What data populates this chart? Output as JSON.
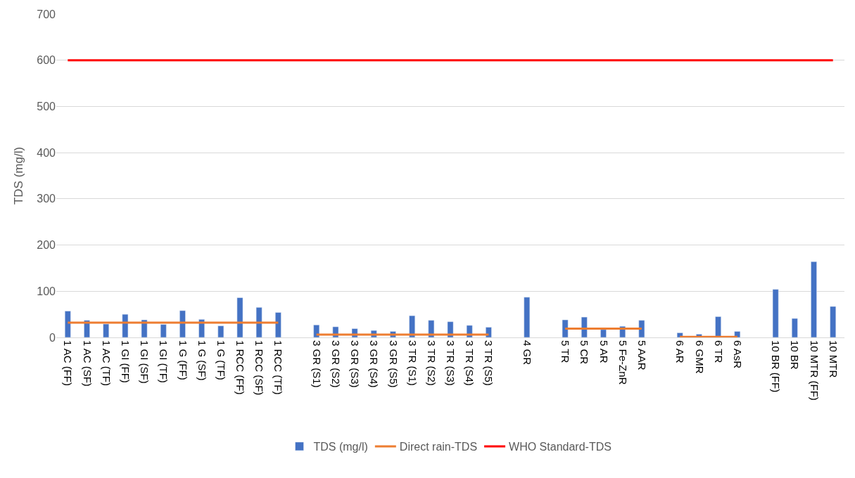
{
  "chart_data": {
    "type": "bar",
    "ylabel": "TDS (mg/l)",
    "categories": [
      "1 AC (FF)",
      "1 AC (SF)",
      "1 AC (TF)",
      "1 GI (FF)",
      "1 GI (SF)",
      "1 GI (TF)",
      "1 G (FF)",
      "1 G (SF)",
      "1 G (TF)",
      "1 RCC (FF)",
      "1 RCC (SF)",
      "1 RCC (TF)",
      null,
      "3 GR (S1)",
      "3 GR (S2)",
      "3 GR (S3)",
      "3 GR (S4)",
      "3 GR (S5)",
      "3 TR (S1)",
      "3 TR (S2)",
      "3 TR (S3)",
      "3 TR (S4)",
      "3 TR (S5)",
      null,
      "4 GR",
      null,
      "5 TR",
      "5 CR",
      "5 AR",
      "5 Fe-ZnR",
      "5 AAR",
      null,
      "6 AR",
      "6 GMR",
      "6 TR",
      "6 AsR",
      null,
      "10 BR (FF)",
      "10 BR",
      "10 MTR (FF)",
      "10 MTR"
    ],
    "series": [
      {
        "name": "TDS (mg/l)",
        "color": "#4472c4",
        "values": [
          57,
          37,
          29,
          50,
          38,
          28,
          58,
          39,
          25,
          86,
          65,
          54,
          null,
          27,
          23,
          19,
          15,
          13,
          47,
          37,
          34,
          26,
          22,
          null,
          87,
          null,
          38,
          44,
          17,
          24,
          37,
          null,
          10,
          7,
          45,
          13,
          null,
          104,
          41,
          164,
          67
        ]
      },
      {
        "name": "Direct rain-TDS",
        "type": "line",
        "color": "#ed7d31",
        "values": [
          32,
          32,
          32,
          32,
          32,
          32,
          32,
          32,
          32,
          32,
          32,
          32,
          null,
          6,
          6,
          6,
          6,
          6,
          6,
          6,
          6,
          6,
          6,
          null,
          null,
          null,
          19,
          19,
          19,
          19,
          19,
          null,
          1,
          1,
          1,
          1,
          null,
          null,
          null,
          null,
          null
        ]
      },
      {
        "name": "WHO Standard-TDS",
        "type": "line",
        "color": "#ff0000",
        "values": [
          600,
          600,
          600,
          600,
          600,
          600,
          600,
          600,
          600,
          600,
          600,
          600,
          600,
          600,
          600,
          600,
          600,
          600,
          600,
          600,
          600,
          600,
          600,
          600,
          600,
          600,
          600,
          600,
          600,
          600,
          600,
          600,
          600,
          600,
          600,
          600,
          600,
          600,
          600,
          600,
          600
        ]
      }
    ],
    "ylim": [
      0,
      700
    ],
    "yticks": [
      0,
      100,
      200,
      300,
      400,
      500,
      600,
      700
    ],
    "grid": "y",
    "legend": "bottom"
  }
}
